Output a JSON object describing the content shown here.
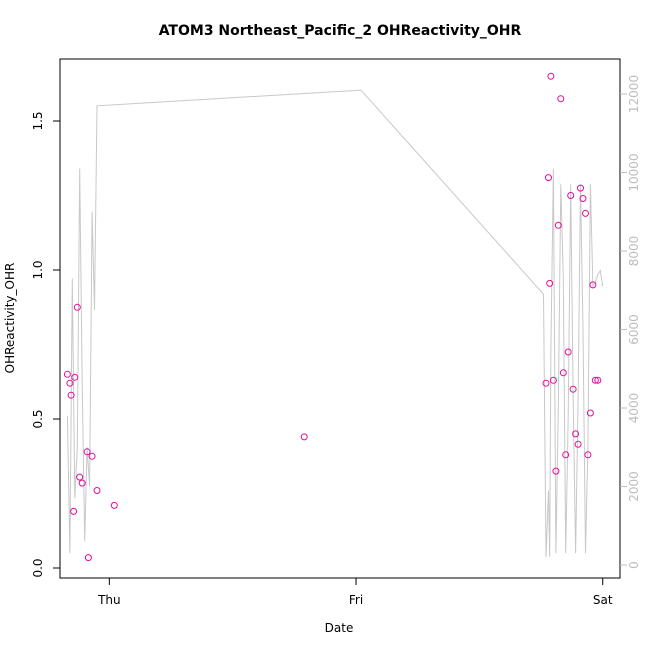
{
  "chart_data": {
    "type": "scatter",
    "title": "ATOM3 Northeast_Pacific_2 OHReactivity_OHR",
    "xlabel": "Date",
    "ylabel": "OHReactivity_OHR",
    "x_tick_labels": [
      "Thu",
      "Fri",
      "Sat"
    ],
    "left_axis": {
      "range": [
        0.0,
        1.7
      ],
      "ticks": [
        0.0,
        0.5,
        1.0,
        1.5
      ],
      "tick_labels": [
        "0.0",
        "0.5",
        "1.0",
        "1.5"
      ]
    },
    "right_axis": {
      "range": [
        0,
        12500
      ],
      "ticks": [
        0,
        2000,
        4000,
        6000,
        8000,
        10000,
        12000
      ],
      "tick_labels": [
        "0",
        "2000",
        "4000",
        "6000",
        "8000",
        "10000",
        "12000"
      ]
    },
    "x_domain_days": [
      -0.2,
      2.07
    ],
    "points_x_days": [
      -0.17,
      -0.16,
      -0.155,
      -0.145,
      -0.14,
      -0.13,
      -0.12,
      -0.11,
      -0.09,
      -0.085,
      -0.07,
      -0.05,
      0.02,
      0.79,
      1.77,
      1.78,
      1.785,
      1.79,
      1.8,
      1.81,
      1.82,
      1.83,
      1.84,
      1.85,
      1.86,
      1.87,
      1.88,
      1.89,
      1.9,
      1.91,
      1.92,
      1.93,
      1.94,
      1.95,
      1.96,
      1.97,
      1.98
    ],
    "points_y": [
      0.65,
      0.62,
      0.58,
      0.19,
      0.64,
      0.875,
      0.305,
      0.285,
      0.39,
      0.035,
      0.375,
      0.26,
      0.21,
      0.44,
      0.62,
      1.31,
      0.955,
      1.65,
      0.63,
      0.325,
      1.15,
      1.575,
      0.655,
      0.38,
      0.725,
      1.25,
      0.6,
      0.45,
      0.415,
      1.275,
      1.24,
      1.19,
      0.38,
      0.52,
      0.95,
      0.63,
      0.63
    ],
    "line_series_x_days": [
      -0.17,
      -0.16,
      -0.15,
      -0.14,
      -0.13,
      -0.12,
      -0.11,
      -0.1,
      -0.09,
      -0.08,
      -0.07,
      -0.06,
      -0.05,
      1.02,
      1.76,
      1.77,
      1.78,
      1.785,
      1.79,
      1.8,
      1.81,
      1.82,
      1.83,
      1.84,
      1.85,
      1.86,
      1.87,
      1.88,
      1.89,
      1.9,
      1.91,
      1.92,
      1.93,
      1.94,
      1.95,
      1.96,
      1.97,
      1.98,
      1.99,
      2.0
    ],
    "line_series_y": [
      3800,
      300,
      7300,
      1700,
      3000,
      10100,
      4600,
      600,
      3000,
      2000,
      9000,
      6500,
      11700,
      12100,
      6900,
      200,
      1900,
      200,
      5500,
      10100,
      300,
      4000,
      9700,
      7300,
      300,
      3800,
      9700,
      4400,
      300,
      4200,
      9700,
      6000,
      300,
      3000,
      9700,
      7100,
      7200,
      7400,
      7500,
      7100
    ],
    "colors": {
      "points": "#e0109a",
      "line": "#c8c8c8",
      "axis": "#000000",
      "right_axis": "#bdbdbd"
    }
  }
}
